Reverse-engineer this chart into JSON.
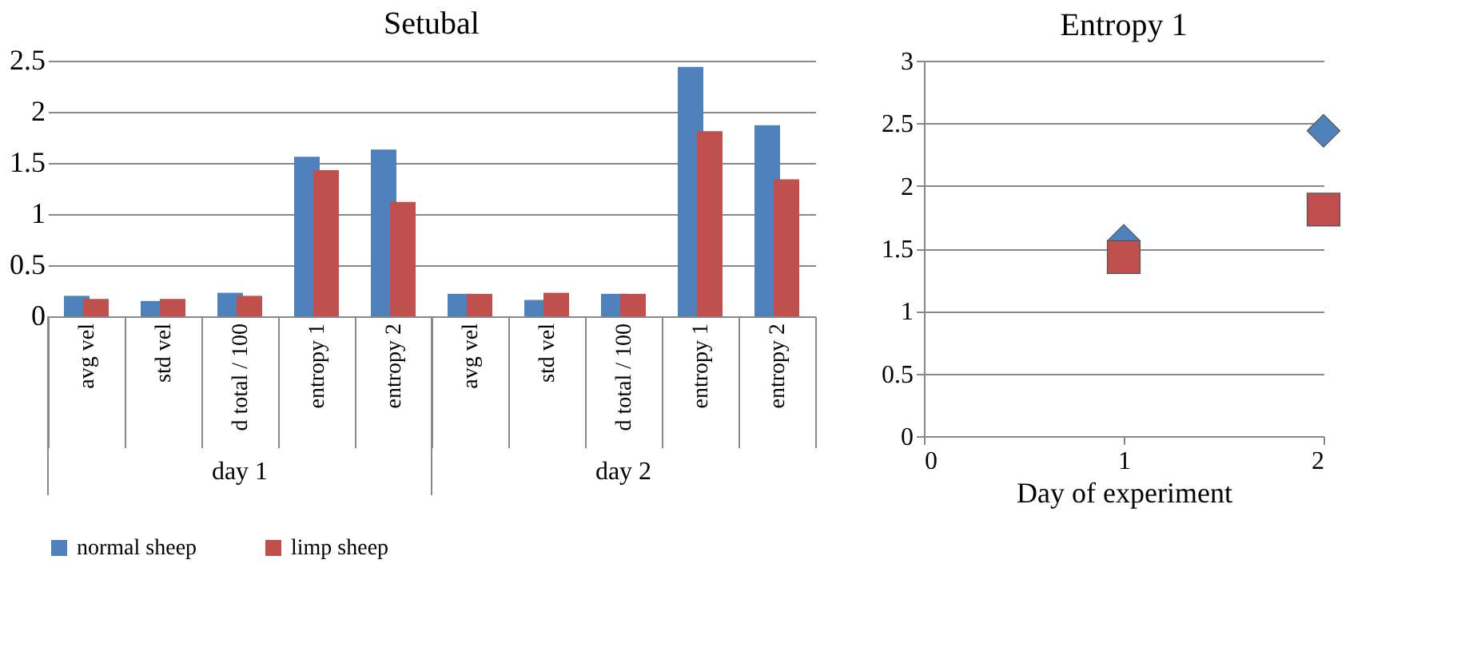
{
  "chart_data": [
    {
      "type": "bar",
      "title": "Setubal",
      "categories": [
        "avg vel",
        "std vel",
        "d total / 100",
        "entropy 1",
        "entropy 2",
        "avg vel",
        "std vel",
        "d total / 100",
        "entropy 1",
        "entropy 2"
      ],
      "series": [
        {
          "name": "normal sheep",
          "color": "#4f81bd",
          "values": [
            0.2,
            0.15,
            0.23,
            1.56,
            1.63,
            0.22,
            0.16,
            0.22,
            2.44,
            1.87
          ]
        },
        {
          "name": "limp sheep",
          "color": "#c0504d",
          "values": [
            0.17,
            0.17,
            0.2,
            1.43,
            1.12,
            0.22,
            0.23,
            0.22,
            1.81,
            1.34
          ]
        }
      ],
      "annotations": [
        "day 1",
        "day 2"
      ],
      "ylim": [
        0,
        2.5
      ],
      "yticks": [
        0,
        0.5,
        1,
        1.5,
        2,
        2.5
      ],
      "grid": "y",
      "legend": "bottom"
    },
    {
      "type": "scatter",
      "title": "Entropy 1",
      "xlabel": "Day of experiment",
      "x": [
        1,
        2
      ],
      "series": [
        {
          "name": "normal sheep",
          "color": "#4f81bd",
          "marker": "diamond",
          "values": [
            1.56,
            2.44
          ]
        },
        {
          "name": "limp sheep",
          "color": "#c0504d",
          "marker": "square",
          "values": [
            1.43,
            1.81
          ]
        }
      ],
      "xlim": [
        0,
        2
      ],
      "xticks": [
        0,
        1,
        2
      ],
      "ylim": [
        0,
        3
      ],
      "yticks": [
        0,
        0.5,
        1,
        1.5,
        2,
        2.5,
        3
      ],
      "grid": "y"
    }
  ]
}
